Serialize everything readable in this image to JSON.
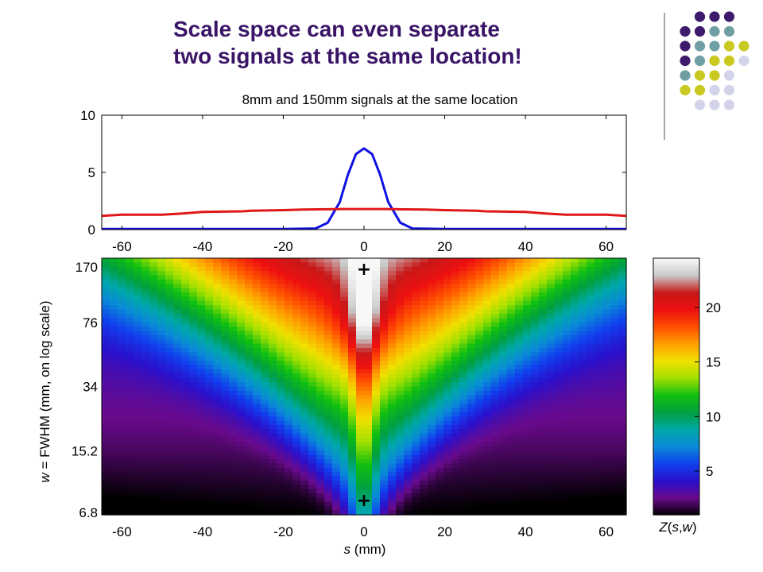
{
  "slide": {
    "title_line1": "Scale space can even separate",
    "title_line2": "two signals at the same location!"
  },
  "colors": {
    "title": "#3a1466",
    "dot_purple": "#3d1a6b",
    "dot_teal": "#6f9fa3",
    "dot_yellow": "#c9c921",
    "dot_lavender": "#d3d3ea",
    "series_8mm": "#1010e0",
    "series_150mm": "#e01818"
  },
  "chart_data": [
    {
      "type": "line",
      "title": "8mm and 150mm signals at the same location",
      "xlabel": "",
      "ylabel": "",
      "xlim": [
        -65,
        65
      ],
      "ylim": [
        0,
        10
      ],
      "xticks": [
        -60,
        -40,
        -20,
        0,
        20,
        40,
        60
      ],
      "yticks": [
        0,
        5,
        10
      ],
      "series": [
        {
          "color": "#1010e0",
          "x": [
            -65,
            -60,
            -50,
            -40,
            -30,
            -20,
            -12,
            -9,
            -6,
            -4,
            -2,
            0,
            2,
            4,
            6,
            9,
            12,
            20,
            30,
            40,
            50,
            60,
            65
          ],
          "y": [
            0.05,
            0.05,
            0.05,
            0.05,
            0.05,
            0.05,
            0.1,
            0.6,
            2.4,
            4.8,
            6.6,
            7.1,
            6.6,
            4.8,
            2.4,
            0.6,
            0.1,
            0.05,
            0.05,
            0.05,
            0.05,
            0.05,
            0.05
          ]
        },
        {
          "color": "#e01818",
          "x": [
            -65,
            -60,
            -50,
            -45,
            -40,
            -30,
            -28,
            -20,
            -15,
            -5,
            0,
            5,
            15,
            20,
            28,
            30,
            40,
            45,
            50,
            60,
            65
          ],
          "y": [
            1.2,
            1.3,
            1.3,
            1.4,
            1.55,
            1.6,
            1.65,
            1.7,
            1.75,
            1.8,
            1.8,
            1.8,
            1.75,
            1.7,
            1.65,
            1.6,
            1.55,
            1.4,
            1.3,
            1.3,
            1.2
          ]
        }
      ]
    },
    {
      "type": "heatmap",
      "title": "",
      "xlabel": "s (mm)",
      "ylabel": "w = FWHM (mm, on log scale)",
      "xlim": [
        -65,
        65
      ],
      "ylim": [
        6.8,
        170
      ],
      "yscale": "log",
      "xticks": [
        -60,
        -40,
        -20,
        0,
        20,
        40,
        60
      ],
      "yticks": [
        6.8,
        15.2,
        34,
        76,
        170
      ],
      "markers": [
        {
          "s": 0,
          "w": 170,
          "symbol": "+"
        },
        {
          "s": 0,
          "w": 6.8,
          "symbol": "+"
        }
      ],
      "colorbar": {
        "label": "Z(s,w)",
        "range": [
          1,
          24.5
        ],
        "ticks": [
          5,
          10,
          15,
          20
        ],
        "colormap": [
          "#000000",
          "#6a0a8c",
          "#2a10cc",
          "#1040ee",
          "#0a8ad8",
          "#00a8a8",
          "#00a040",
          "#10c010",
          "#a0e000",
          "#f0e000",
          "#ffa000",
          "#ff5000",
          "#ee1010",
          "#c81818",
          "#c8c8c8",
          "#f8f8f8"
        ]
      }
    }
  ]
}
